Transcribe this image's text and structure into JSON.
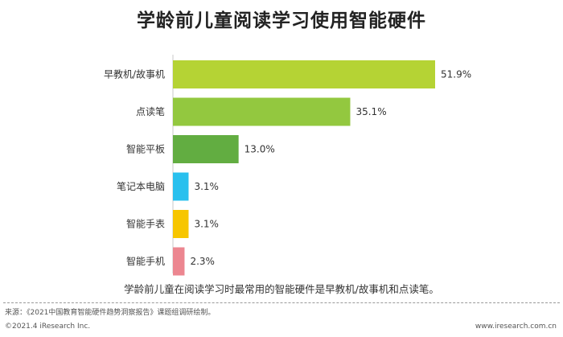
{
  "chart_data": {
    "type": "bar",
    "orientation": "horizontal",
    "title": "学龄前儿童阅读学习使用智能硬件",
    "categories": [
      "早教机/故事机",
      "点读笔",
      "智能平板",
      "笔记本电脑",
      "智能手表",
      "智能手机"
    ],
    "values": [
      51.9,
      35.1,
      13.0,
      3.1,
      3.1,
      2.3
    ],
    "value_labels": [
      "51.9%",
      "35.1%",
      "13.0%",
      "3.1%",
      "3.1%",
      "2.3%"
    ],
    "unit": "%",
    "colors": [
      "#b5d334",
      "#93c83f",
      "#62ad41",
      "#29c0ee",
      "#f7c600",
      "#ec8690"
    ],
    "xlim": [
      0,
      51.9
    ],
    "grid": false,
    "legend": "none"
  },
  "note": "学龄前儿童在阅读学习时最常用的智能硬件是早教机/故事机和点读笔。",
  "footer": {
    "source": "来源：《2021中国教育智能硬件趋势洞察报告》课题组调研绘制。",
    "copyright": "©2021.4 iResearch Inc.",
    "website": "www.iresearch.com.cn"
  }
}
